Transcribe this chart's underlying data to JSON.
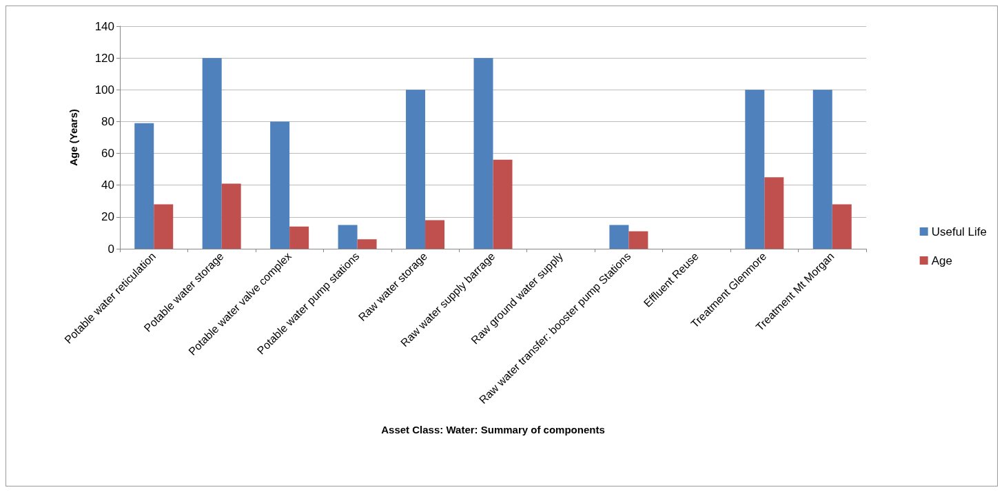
{
  "chart_data": {
    "type": "bar",
    "xlabel": "Asset Class: Water: Summary of components",
    "ylabel": "Age (Years)",
    "categories": [
      "Potable water reticulation",
      "Potable water storage",
      "Potable water valve complex",
      "Potable water pump stations",
      "Raw water storage",
      "Raw water supply barrage",
      "Raw ground water supply",
      "Raw water transfer: booster pump Stations",
      "Effluent Reuse",
      "Treatment Glenmore",
      "Treatment Mt Morgan"
    ],
    "series": [
      {
        "name": "Useful Life",
        "color": "#4f81bd",
        "values": [
          79,
          120,
          80,
          15,
          100,
          120,
          null,
          15,
          null,
          100,
          100
        ]
      },
      {
        "name": "Age",
        "color": "#c0504d",
        "values": [
          28,
          41,
          14,
          6,
          18,
          56,
          null,
          11,
          null,
          45,
          28
        ]
      }
    ],
    "ylim": [
      0,
      140
    ],
    "yticks": [
      0,
      20,
      40,
      60,
      80,
      100,
      120,
      140
    ],
    "grid": "y",
    "legend": "right"
  }
}
